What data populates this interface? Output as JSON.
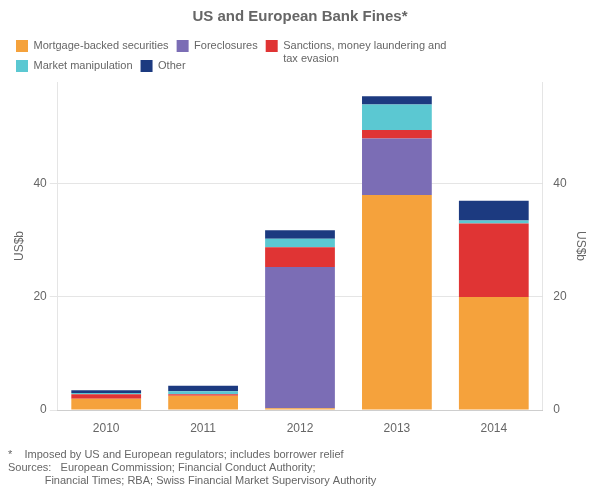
{
  "chart_data": {
    "type": "bar",
    "stacked": true,
    "title": "US and European Bank Fines*",
    "categories": [
      "2010",
      "2011",
      "2012",
      "2013",
      "2014"
    ],
    "series": [
      {
        "name": "Mortgage-backed securities",
        "color": "#F5A23C",
        "values": [
          2.0,
          2.5,
          0.3,
          38.0,
          20.0
        ]
      },
      {
        "name": "Foreclosures",
        "color": "#7B6DB5",
        "values": [
          0.0,
          0.0,
          25.0,
          10.0,
          0.0
        ]
      },
      {
        "name": "Sanctions, money laundering and\ntax evasion",
        "color": "#E03434",
        "values": [
          0.8,
          0.3,
          3.5,
          1.5,
          13.0
        ]
      },
      {
        "name": "Market manipulation",
        "color": "#5BC8D2",
        "values": [
          0.2,
          0.5,
          1.5,
          4.5,
          0.5
        ]
      },
      {
        "name": "Other",
        "color": "#1C3A80",
        "values": [
          0.5,
          1.0,
          1.5,
          1.5,
          3.5
        ]
      }
    ],
    "ylim": [
      0,
      58
    ],
    "yticks": [
      0,
      20,
      40
    ],
    "ylabel": "US$b",
    "y2lim": [
      0,
      58
    ],
    "y2ticks": [
      0,
      20,
      40
    ],
    "y2label": "US$b",
    "grid": true,
    "legend": "upper left",
    "annotations": [
      "*    Imposed by US and European regulators; includes borrower relief",
      "Sources:   European Commission; Financial Conduct Authority;",
      "            Financial Times; RBA; Swiss Financial Market Supervisory Authority"
    ]
  }
}
